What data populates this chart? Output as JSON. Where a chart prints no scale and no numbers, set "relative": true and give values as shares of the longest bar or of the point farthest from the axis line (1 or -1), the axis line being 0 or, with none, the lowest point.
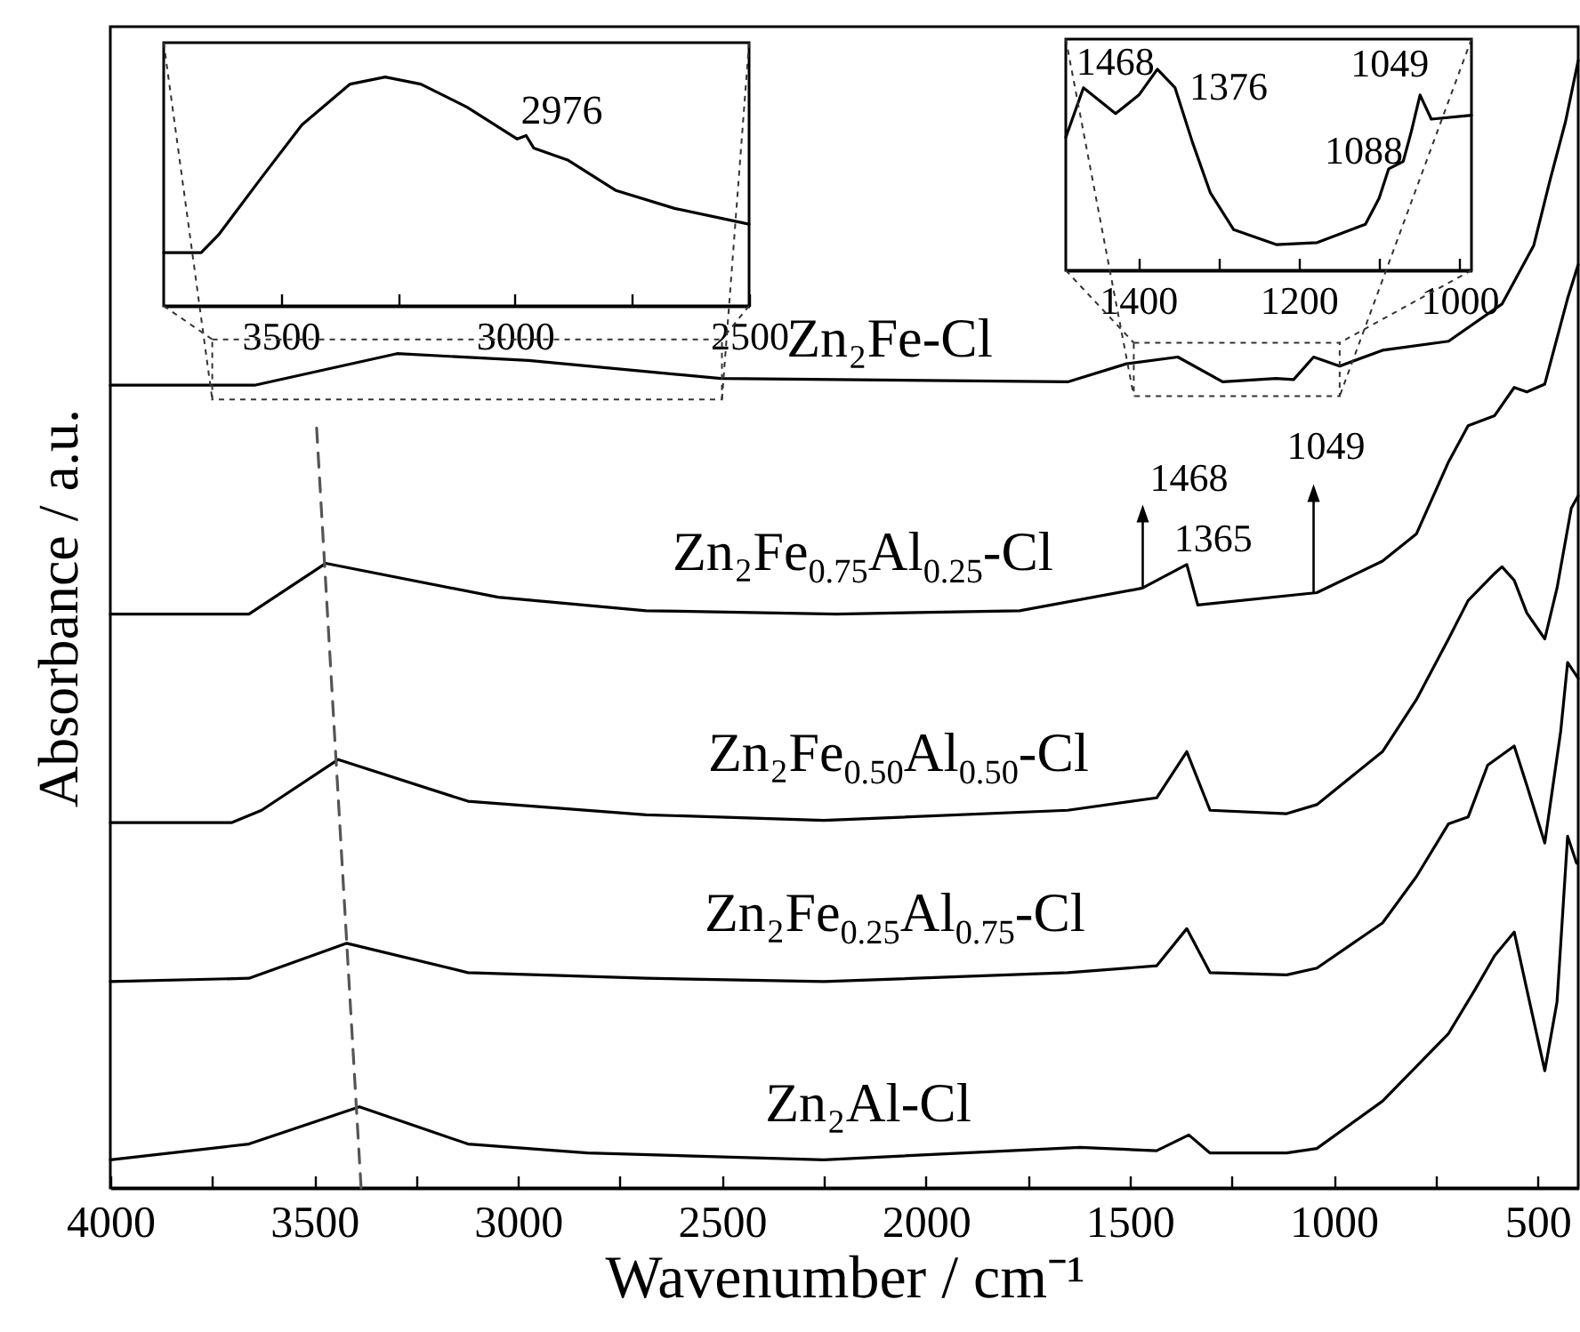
{
  "chart_data": [
    {
      "type": "line",
      "xlabel": "Wavenumber / cm⁻¹",
      "ylabel": "Absorbance / a.u.",
      "relative": true,
      "xlim": [
        4000,
        400
      ],
      "xticks": [
        4000,
        {
          "value": 3750,
          "label": null
        },
        3500,
        {
          "value": 3250,
          "label": null
        },
        3000,
        {
          "value": 2750,
          "label": null
        },
        2500,
        {
          "value": 2250,
          "label": null
        },
        2000,
        {
          "value": 1750,
          "label": null
        },
        1500,
        {
          "value": 1250,
          "label": null
        },
        1000,
        {
          "value": 750,
          "label": null
        },
        500
      ],
      "series": [
        {
          "name": "Zn₂Fe-Cl",
          "color": "#000000",
          "x": [
            4000,
            3646,
            3297,
            2974,
            2503,
            1652,
            1508,
            1382,
            1272,
            1141,
            1098,
            1049,
            985,
            880,
            718,
            587,
            509,
            469,
            431,
            400
          ],
          "values": [
            0.712,
            0.712,
            0.74,
            0.734,
            0.718,
            0.715,
            0.731,
            0.737,
            0.715,
            0.718,
            0.717,
            0.737,
            0.729,
            0.743,
            0.751,
            0.784,
            0.836,
            0.894,
            0.946,
            1.0
          ]
        },
        {
          "name": "Zn₂Fe$_{0.75}$Al$_{0.25}$-Cl",
          "color": "#000000",
          "x": [
            4000,
            3660,
            3472,
            3049,
            2686,
            2219,
            1770,
            1469,
            1360,
            1333,
            1041,
            880,
            797,
            718,
            670,
            605,
            557,
            526,
            482,
            426,
            400
          ],
          "values": [
            0.509,
            0.509,
            0.554,
            0.524,
            0.512,
            0.509,
            0.512,
            0.532,
            0.553,
            0.517,
            0.528,
            0.556,
            0.58,
            0.644,
            0.676,
            0.685,
            0.71,
            0.706,
            0.713,
            0.789,
            0.819
          ]
        },
        {
          "name": "Zn₂Fe$_{0.50}$Al$_{0.50}$-Cl",
          "color": "#000000",
          "x": [
            4000,
            3703,
            3629,
            3441,
            3123,
            2686,
            2250,
            1652,
            1434,
            1360,
            1303,
            1115,
            1041,
            880,
            797,
            718,
            670,
            605,
            587,
            557,
            526,
            482,
            452,
            417,
            400
          ],
          "values": [
            0.324,
            0.324,
            0.335,
            0.38,
            0.343,
            0.331,
            0.326,
            0.335,
            0.346,
            0.387,
            0.335,
            0.332,
            0.34,
            0.387,
            0.433,
            0.487,
            0.521,
            0.545,
            0.551,
            0.539,
            0.51,
            0.487,
            0.532,
            0.603,
            0.614
          ]
        },
        {
          "name": "Zn₂Fe$_{0.25}$Al$_{0.75}$-Cl",
          "color": "#000000",
          "x": [
            4000,
            3660,
            3420,
            3123,
            2686,
            2250,
            1652,
            1434,
            1360,
            1303,
            1115,
            1041,
            880,
            797,
            718,
            670,
            622,
            557,
            526,
            482,
            443,
            426,
            400
          ],
          "values": [
            0.183,
            0.186,
            0.217,
            0.191,
            0.186,
            0.183,
            0.191,
            0.197,
            0.23,
            0.191,
            0.189,
            0.195,
            0.235,
            0.276,
            0.323,
            0.329,
            0.375,
            0.392,
            0.357,
            0.306,
            0.405,
            0.466,
            0.452
          ]
        },
        {
          "name": "Zn₂Al-Cl",
          "color": "#000000",
          "x": [
            4000,
            3660,
            3389,
            3123,
            2830,
            2250,
            1622,
            1434,
            1355,
            1303,
            1115,
            1041,
            880,
            718,
            653,
            605,
            557,
            526,
            482,
            452,
            426,
            404
          ],
          "values": [
            0.025,
            0.039,
            0.072,
            0.039,
            0.031,
            0.025,
            0.036,
            0.033,
            0.047,
            0.031,
            0.031,
            0.035,
            0.077,
            0.137,
            0.176,
            0.206,
            0.227,
            0.176,
            0.104,
            0.165,
            0.312,
            0.288
          ]
        },
        {
          "color": "#555555",
          "line_style": "dashed",
          "x": [
            3494,
            3385
          ],
          "values": [
            0.674,
            0
          ]
        }
      ],
      "annotations": [
        {
          "text": "1468",
          "x": 1468,
          "y": 0.532
        },
        {
          "text": "1365",
          "x": 1365,
          "y": 0.553
        },
        {
          "text": "1049",
          "x": 1049,
          "y": 0.528
        }
      ]
    },
    {
      "type": "line",
      "relative": true,
      "xlim": [
        3750,
        2500
      ],
      "xticks": [
        3500,
        {
          "value": 3250,
          "label": null
        },
        3000,
        {
          "value": 2750,
          "label": null
        },
        2500
      ],
      "series": [
        {
          "color": "#000000",
          "x": [
            3750,
            3670,
            3633,
            3542,
            3455,
            3352,
            3277,
            3201,
            3102,
            2995,
            2976,
            2960,
            2886,
            2784,
            2659,
            2500
          ],
          "values": [
            0.233,
            0.233,
            0.31,
            0.558,
            0.791,
            0.969,
            1.0,
            0.969,
            0.868,
            0.729,
            0.744,
            0.69,
            0.636,
            0.504,
            0.426,
            0.357
          ]
        }
      ],
      "annotations": [
        {
          "text": "2976",
          "x": 2976,
          "y": 0.744
        }
      ]
    },
    {
      "type": "line",
      "relative": true,
      "xlim": [
        1490,
        985
      ],
      "xticks": [
        1400,
        {
          "value": 1300,
          "label": null
        },
        1200,
        {
          "value": 1100,
          "label": null
        },
        1000
      ],
      "series": [
        {
          "color": "#000000",
          "x": [
            1490,
            1468,
            1450,
            1428,
            1399,
            1376,
            1354,
            1332,
            1310,
            1281,
            1228,
            1177,
            1117,
            1100,
            1088,
            1070,
            1060,
            1049,
            1035,
            985
          ],
          "values": [
            0.661,
            0.908,
            0.85,
            0.78,
            0.872,
            1.0,
            0.908,
            0.633,
            0.385,
            0.202,
            0.128,
            0.138,
            0.229,
            0.358,
            0.505,
            0.541,
            0.688,
            0.872,
            0.752,
            0.771
          ]
        }
      ],
      "annotations": [
        {
          "text": "1468",
          "x": 1468,
          "y": 0.908
        },
        {
          "text": "1376",
          "x": 1376,
          "y": 1.0
        },
        {
          "text": "1088",
          "x": 1088,
          "y": 0.505
        },
        {
          "text": "1049",
          "x": 1049,
          "y": 0.872
        }
      ]
    }
  ]
}
